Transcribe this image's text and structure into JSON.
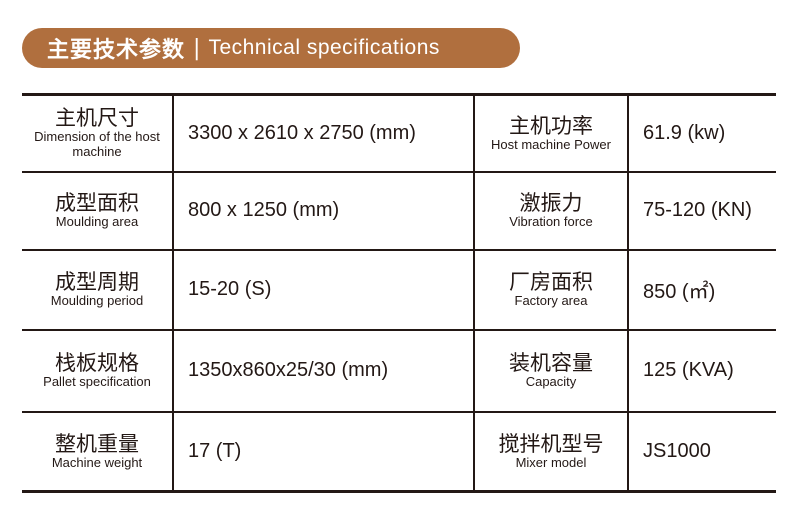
{
  "header": {
    "title_cn": "主要技术参数",
    "separator": "|",
    "title_en": "Technical specifications",
    "color": "#b06f3e"
  },
  "rows": [
    {
      "left": {
        "cn": "主机尺寸",
        "en": "Dimension of the host machine",
        "value": "3300 x 2610 x 2750 (mm)"
      },
      "right": {
        "cn": "主机功率",
        "en": "Host machine Power",
        "value": "61.9 (kw)"
      }
    },
    {
      "left": {
        "cn": "成型面积",
        "en": "Moulding area",
        "value": "800 x 1250 (mm)"
      },
      "right": {
        "cn": "激振力",
        "en": "Vibration force",
        "value": "75-120 (KN)"
      }
    },
    {
      "left": {
        "cn": "成型周期",
        "en": "Moulding period",
        "value": "15-20 (S)"
      },
      "right": {
        "cn": "厂房面积",
        "en": "Factory area",
        "value": "850 (㎡)"
      }
    },
    {
      "left": {
        "cn": "栈板规格",
        "en": "Pallet specification",
        "value": "1350x860x25/30 (mm)"
      },
      "right": {
        "cn": "装机容量",
        "en": "Capacity",
        "value": "125 (KVA)"
      }
    },
    {
      "left": {
        "cn": "整机重量",
        "en": "Machine weight",
        "value": "17 (T)"
      },
      "right": {
        "cn": "搅拌机型号",
        "en": "Mixer model",
        "value": "JS1000"
      }
    }
  ]
}
